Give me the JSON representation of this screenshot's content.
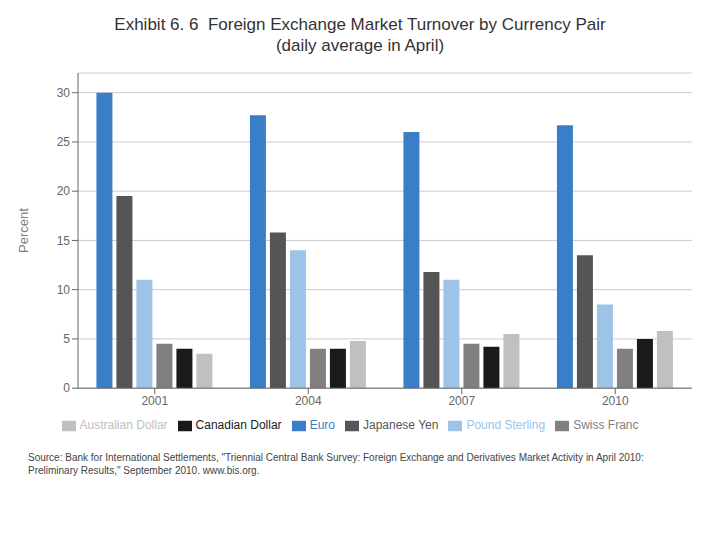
{
  "chart_data": {
    "type": "bar",
    "title": "Exhibit 6. 6  Foreign Exchange Market Turnover by Currency Pair\n(daily average in April)",
    "categories": [
      "2001",
      "2004",
      "2007",
      "2010"
    ],
    "series": [
      {
        "name": "Euro",
        "color": "#3B7EC8",
        "values": [
          30.0,
          27.7,
          26.0,
          26.7
        ]
      },
      {
        "name": "Japanese Yen",
        "color": "#555555",
        "values": [
          19.5,
          15.8,
          11.8,
          13.5
        ]
      },
      {
        "name": "Pound Sterling",
        "color": "#9DC3E6",
        "values": [
          11.0,
          14.0,
          11.0,
          8.5
        ]
      },
      {
        "name": "Swiss Franc",
        "color": "#808080",
        "values": [
          4.5,
          4.0,
          4.5,
          4.0
        ]
      },
      {
        "name": "Canadian Dollar",
        "color": "#1A1A1A",
        "values": [
          4.0,
          4.0,
          4.2,
          5.0
        ]
      },
      {
        "name": "Australian Dollar",
        "color": "#C0C0C0",
        "values": [
          3.5,
          4.8,
          5.5,
          5.8
        ]
      }
    ],
    "ylabel": "Percent",
    "ylim": [
      0,
      32
    ],
    "yticks": [
      0,
      5,
      10,
      15,
      20,
      25,
      30
    ],
    "grid": true,
    "legend": "bottom",
    "annotations": [
      "Source: Bank for International Settlements, \"Triennial Central Bank Survey: Foreign Exchange and Derivatives Market Activity in April 2010:\nPreliminary Results,\" September 2010. www.bis.org."
    ]
  }
}
